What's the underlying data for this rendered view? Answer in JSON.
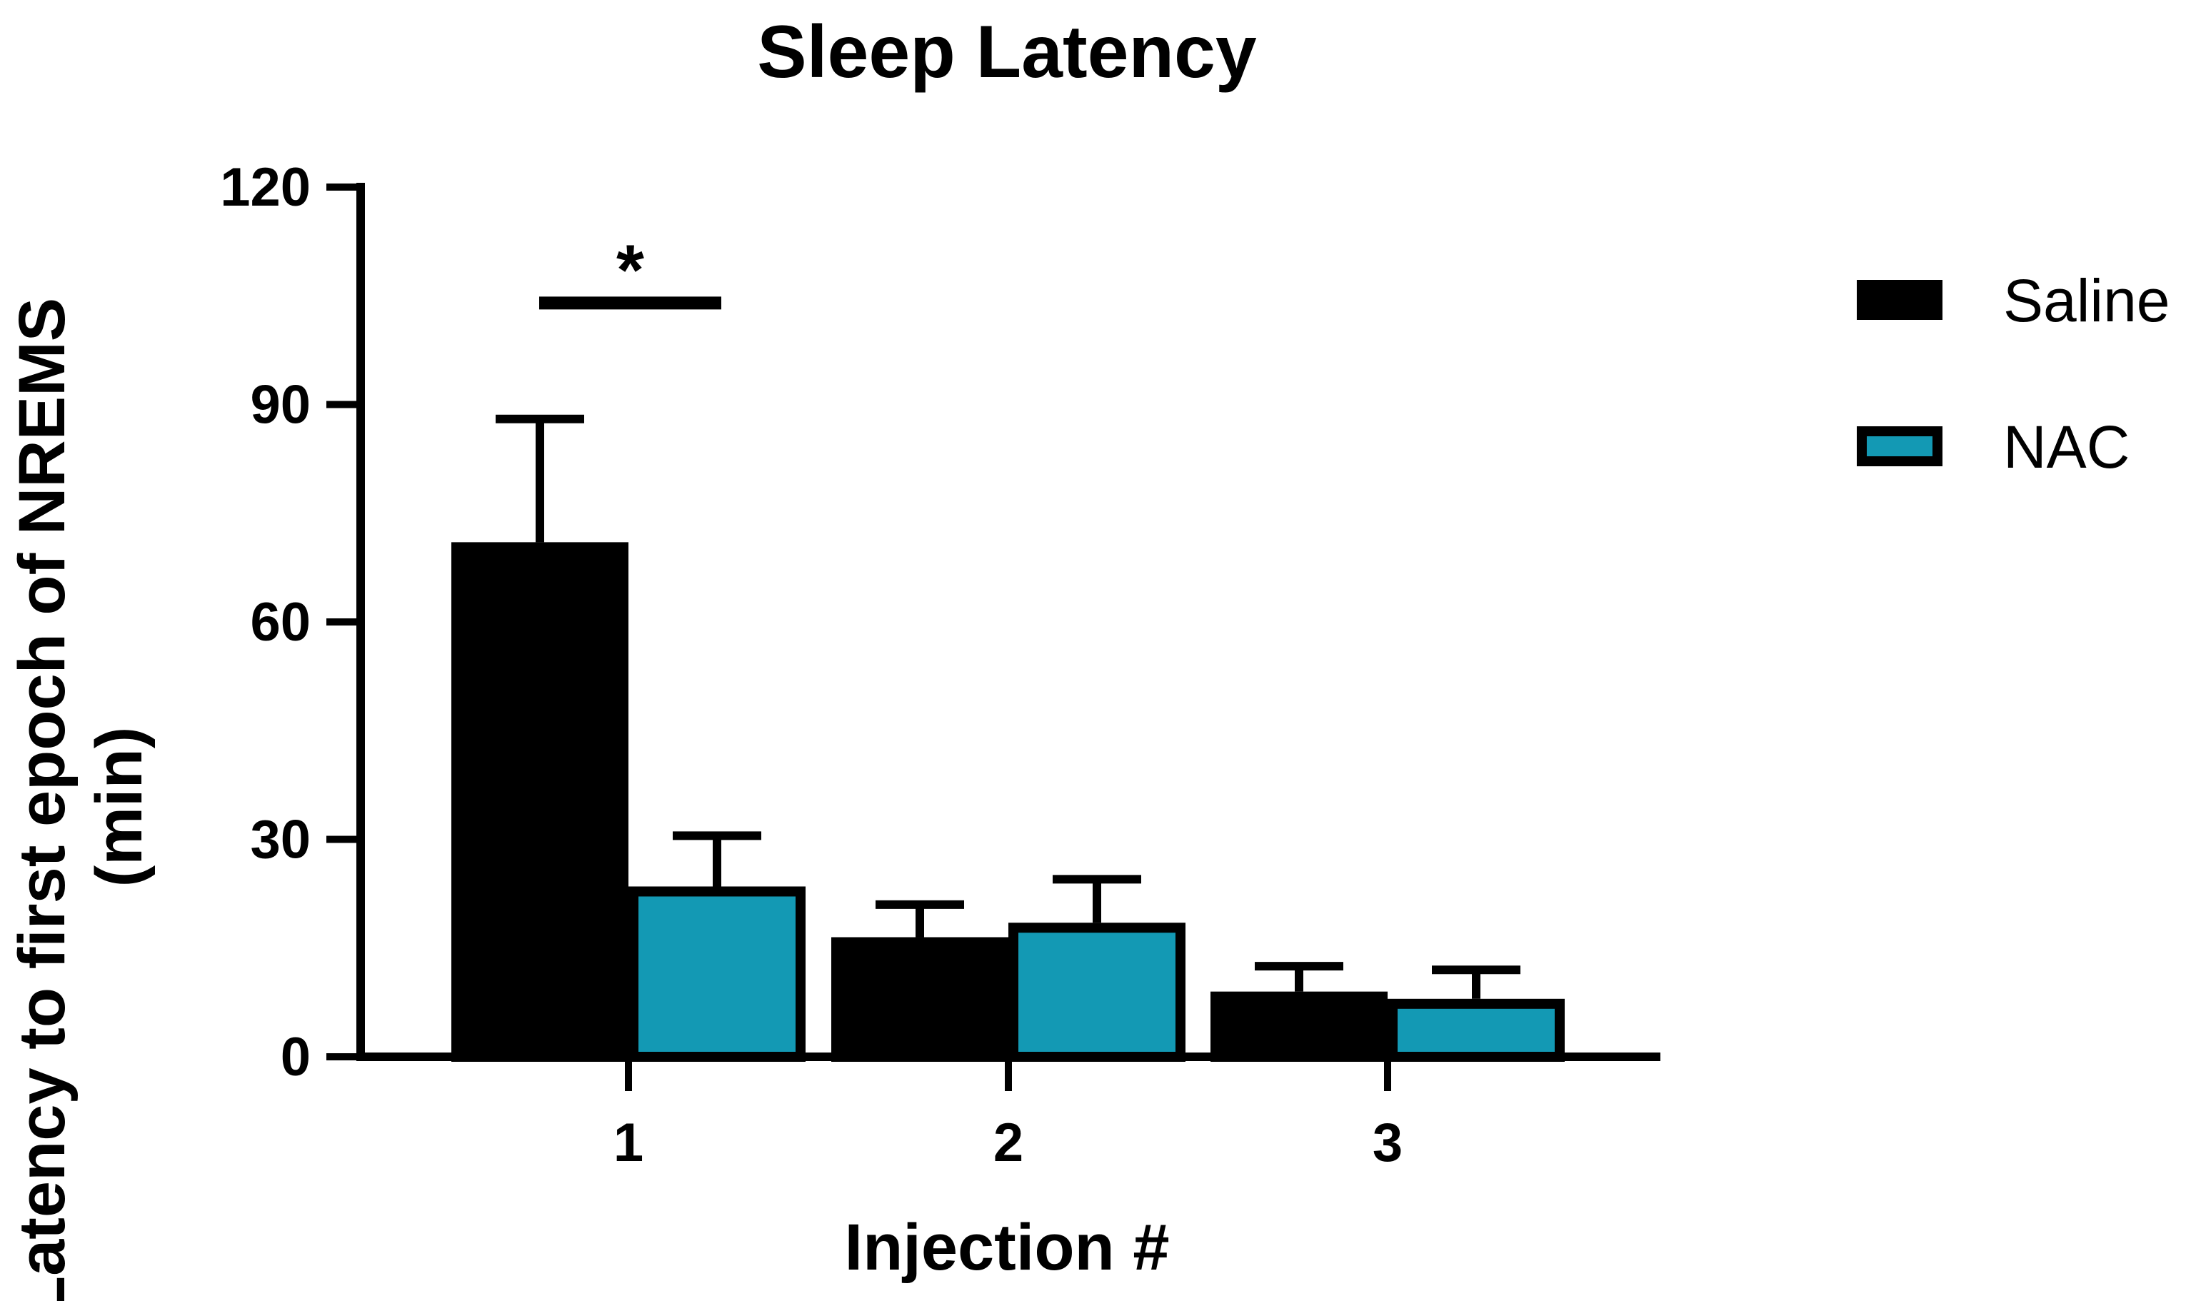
{
  "chart_data": {
    "type": "bar",
    "title": "Sleep Latency",
    "xlabel": "Injection #",
    "ylabel": [
      "Latency to first epoch of NREMS",
      "(min)"
    ],
    "categories": [
      "1",
      "2",
      "3"
    ],
    "ylim": [
      0,
      120
    ],
    "yticks": [
      0,
      30,
      60,
      90,
      120
    ],
    "ytick_labels": [
      "0",
      "30",
      "60",
      "90",
      "120"
    ],
    "series": [
      {
        "name": "Saline",
        "color": "#000000",
        "values": [
          71,
          16.5,
          9
        ],
        "errors": [
          17,
          4.5,
          3.5
        ]
      },
      {
        "name": "NAC",
        "color": "#1399b4",
        "values": [
          23.5,
          18.5,
          8
        ],
        "errors": [
          7,
          6,
          4
        ]
      }
    ],
    "legend": {
      "position": "right",
      "entries": [
        "Saline",
        "NAC"
      ]
    },
    "significance": [
      {
        "category": "1",
        "label": "*",
        "y": 104
      }
    ],
    "grid": false
  }
}
